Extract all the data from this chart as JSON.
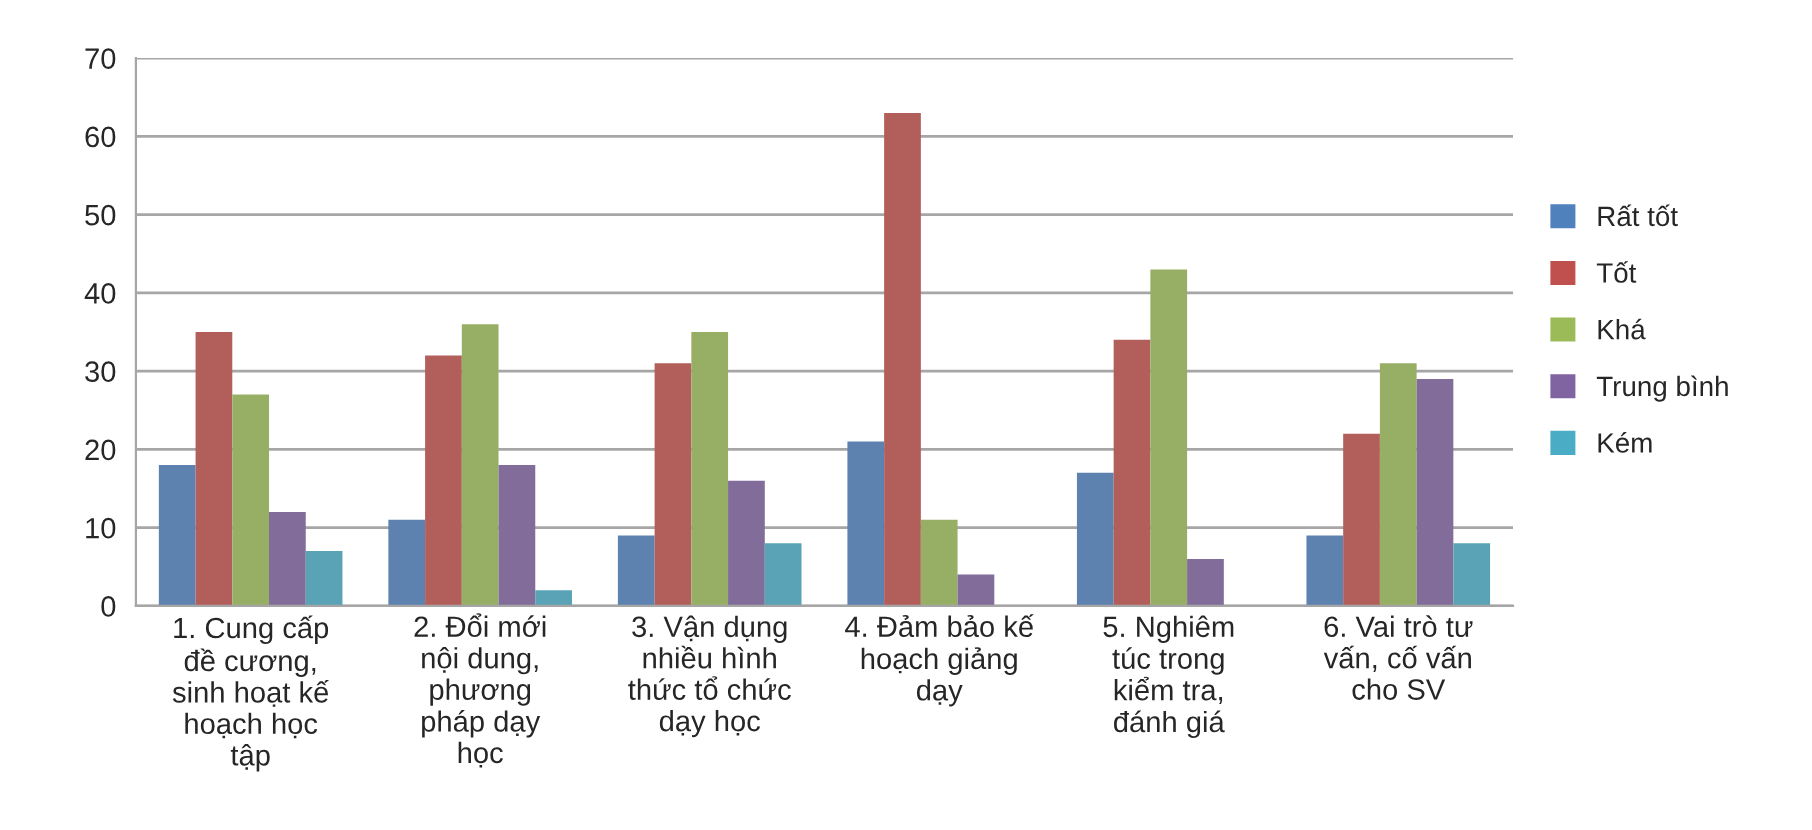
{
  "chart_data": {
    "type": "bar",
    "categories": [
      "1. Cung cấp\nđề cương,\nsinh hoạt kế\nhoạch học\ntập",
      "2. Đổi mới\nnội dung,\nphương\npháp dạy\nhọc",
      "3. Vận dụng\nnhiều hình\nthức tổ chức\ndạy học",
      "4. Đảm bảo kế\nhoạch giảng\ndạy",
      "5. Nghiêm\ntúc trong\nkiểm tra,\nđánh giá",
      "6. Vai trò tư\nvấn, cố vấn\ncho SV"
    ],
    "series": [
      {
        "name": "Rất tốt",
        "color": "#4f81bd",
        "values": [
          18,
          11,
          9,
          21,
          17,
          9
        ]
      },
      {
        "name": "Tốt",
        "color": "#c0504d",
        "values": [
          35,
          32,
          31,
          63,
          34,
          22
        ]
      },
      {
        "name": "Khá",
        "color": "#9bbb59",
        "values": [
          27,
          36,
          35,
          11,
          43,
          31
        ]
      },
      {
        "name": "Trung bình",
        "color": "#8064a2",
        "values": [
          12,
          18,
          16,
          4,
          6,
          29
        ]
      },
      {
        "name": "Kém",
        "color": "#4bacc6",
        "values": [
          7,
          2,
          8,
          0,
          0,
          8
        ]
      }
    ],
    "ylim": [
      0,
      70
    ],
    "yticks": [
      0,
      10,
      20,
      30,
      40,
      50,
      60,
      70
    ],
    "grid": "y",
    "legend": "right"
  }
}
